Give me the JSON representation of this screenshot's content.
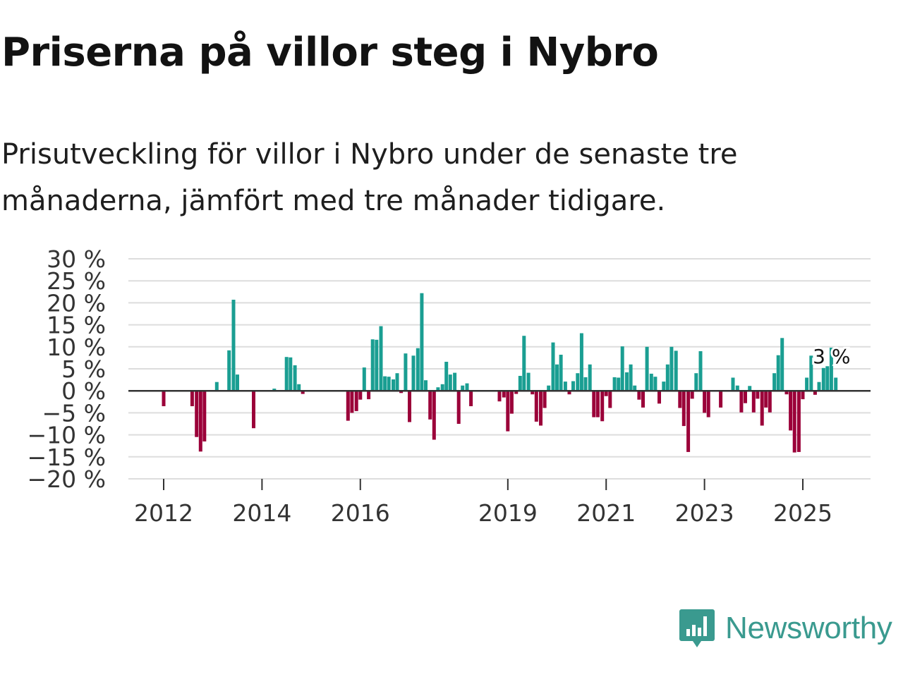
{
  "title": "Priserna på villor steg i Nybro",
  "subtitle": "Prisutveckling för villor i Nybro under de senaste tre månaderna, jämfört med tre månader tidigare.",
  "logo": {
    "text": "Newsworthy",
    "icon": "newsworthy-chart-icon"
  },
  "colors": {
    "positive": "#1a9e92",
    "negative": "#9b0039",
    "grid": "#dddddd",
    "zero": "#333333",
    "logo": "#3a9a8f"
  },
  "chart_data": {
    "type": "bar",
    "title": "Priserna på villor steg i Nybro",
    "subtitle": "Prisutveckling för villor i Nybro under de senaste tre månaderna, jämfört med tre månader tidigare.",
    "xlabel": "",
    "ylabel": "",
    "ylim": [
      -20,
      30
    ],
    "yticks": [
      30,
      25,
      20,
      15,
      10,
      5,
      0,
      -5,
      -10,
      -15,
      -20
    ],
    "ytick_labels": [
      "30 %",
      "25 %",
      "20 %",
      "15 %",
      "10 %",
      "5 %",
      "0 %",
      "−5 %",
      "−10 %",
      "−15 %",
      "−20 %"
    ],
    "xticks": [
      2012,
      2014,
      2016,
      2019,
      2021,
      2023,
      2025
    ],
    "xtick_labels": [
      "2012",
      "2014",
      "2016",
      "2019",
      "2021",
      "2023",
      "2025"
    ],
    "grid": true,
    "annotation": {
      "text": "3 %",
      "value": 3,
      "x": 2025.7
    },
    "x": [
      2012.0,
      2012.58,
      2012.67,
      2012.75,
      2012.83,
      2013.08,
      2013.33,
      2013.42,
      2013.5,
      2013.83,
      2014.25,
      2014.5,
      2014.58,
      2014.67,
      2014.75,
      2014.83,
      2015.75,
      2015.83,
      2015.92,
      2016.0,
      2016.08,
      2016.17,
      2016.25,
      2016.33,
      2016.42,
      2016.5,
      2016.58,
      2016.67,
      2016.75,
      2016.83,
      2016.92,
      2017.0,
      2017.08,
      2017.17,
      2017.25,
      2017.33,
      2017.42,
      2017.5,
      2017.58,
      2017.67,
      2017.75,
      2017.83,
      2017.92,
      2018.0,
      2018.08,
      2018.17,
      2018.25,
      2018.83,
      2018.92,
      2019.0,
      2019.08,
      2019.17,
      2019.25,
      2019.33,
      2019.42,
      2019.5,
      2019.58,
      2019.67,
      2019.75,
      2019.83,
      2019.92,
      2020.0,
      2020.08,
      2020.17,
      2020.25,
      2020.33,
      2020.42,
      2020.5,
      2020.58,
      2020.67,
      2020.75,
      2020.83,
      2020.92,
      2021.0,
      2021.08,
      2021.17,
      2021.25,
      2021.33,
      2021.42,
      2021.5,
      2021.58,
      2021.67,
      2021.75,
      2021.83,
      2021.92,
      2022.0,
      2022.08,
      2022.17,
      2022.25,
      2022.33,
      2022.42,
      2022.5,
      2022.58,
      2022.67,
      2022.75,
      2022.83,
      2022.92,
      2023.0,
      2023.08,
      2023.33,
      2023.58,
      2023.67,
      2023.75,
      2023.83,
      2023.92,
      2024.0,
      2024.08,
      2024.17,
      2024.25,
      2024.33,
      2024.42,
      2024.5,
      2024.58,
      2024.67,
      2024.75,
      2024.83,
      2024.92,
      2025.0,
      2025.08,
      2025.17,
      2025.25,
      2025.33,
      2025.42,
      2025.5,
      2025.58,
      2025.67
    ],
    "values": [
      -3.5,
      -3.5,
      -10.5,
      -13.8,
      -11.5,
      2.0,
      9.2,
      20.7,
      3.7,
      -8.5,
      0.5,
      7.7,
      7.6,
      5.8,
      1.5,
      -0.7,
      -6.8,
      -5.0,
      -4.6,
      -2.0,
      5.3,
      -1.9,
      11.7,
      11.6,
      14.7,
      3.3,
      3.2,
      2.6,
      4.0,
      -0.5,
      8.5,
      -7.1,
      8.0,
      9.7,
      22.2,
      2.4,
      -6.5,
      -11.1,
      0.8,
      1.5,
      6.6,
      3.7,
      4.1,
      -7.5,
      1.2,
      1.7,
      -3.5,
      -2.4,
      -1.5,
      -9.2,
      -5.2,
      -0.7,
      3.4,
      12.5,
      4.1,
      -0.8,
      -7.0,
      -7.9,
      -3.9,
      1.2,
      11.0,
      6.0,
      8.2,
      2.1,
      -0.8,
      2.2,
      4.0,
      13.1,
      3.1,
      6.0,
      -6.0,
      -6.0,
      -6.9,
      -1.2,
      -3.9,
      3.1,
      3.0,
      10.1,
      4.2,
      6.0,
      1.2,
      -2.0,
      -3.8,
      10.0,
      3.9,
      3.2,
      -2.9,
      2.1,
      6.0,
      10.0,
      9.1,
      -3.9,
      -8.0,
      -13.9,
      -1.8,
      4.0,
      9.0,
      -5.0,
      -6.0,
      -3.8,
      3.0,
      1.2,
      -4.9,
      -2.8,
      1.1,
      -4.9,
      -1.8,
      -7.9,
      -3.8,
      -4.9,
      4.0,
      8.1,
      12.0,
      -0.8,
      -9.0,
      -14.0,
      -13.9,
      -1.9,
      3.0,
      8.0,
      -0.9,
      2.0,
      5.2,
      5.6,
      9.8,
      3.0
    ]
  }
}
